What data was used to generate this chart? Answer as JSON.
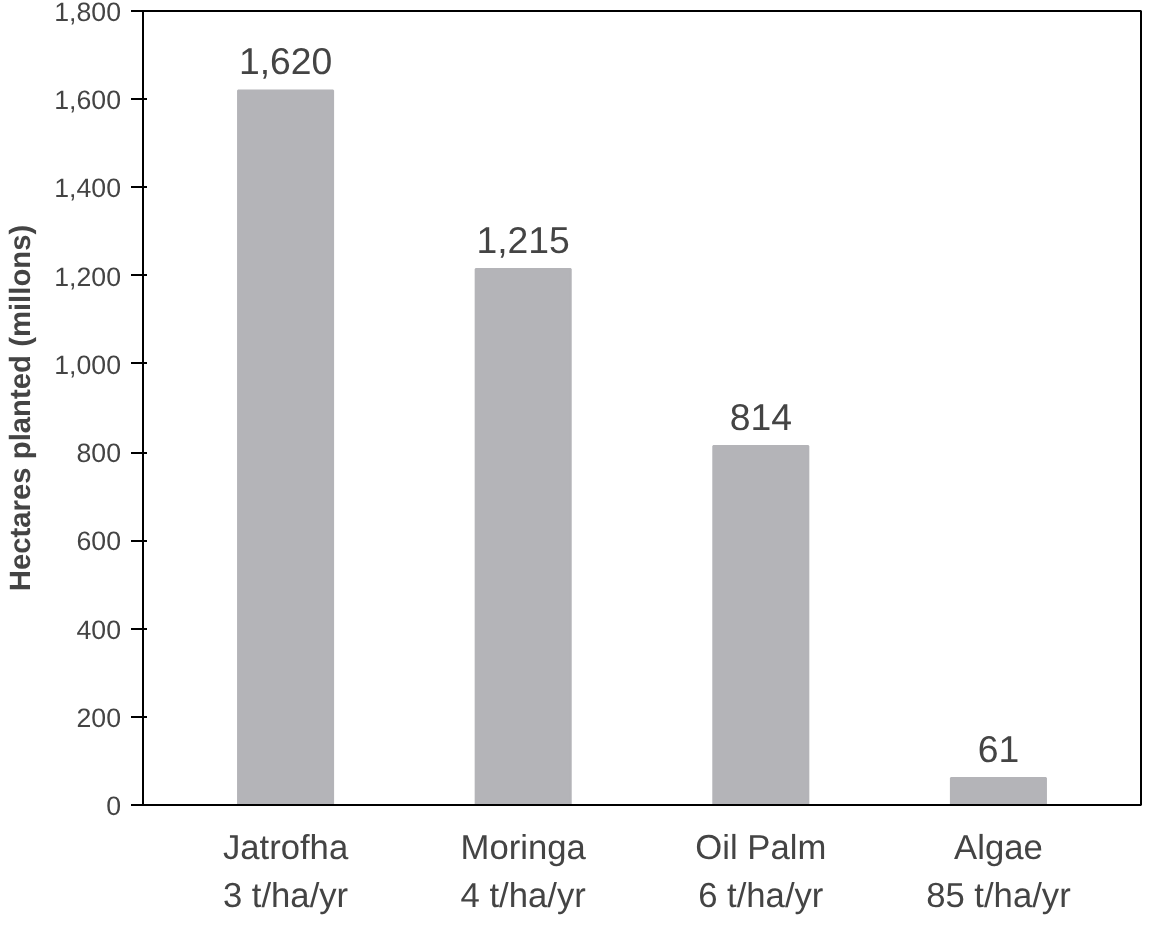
{
  "chart_data": {
    "type": "bar",
    "ylabel": "Hectares planted (millons)",
    "categories": [
      "Jatrofha\n3 t/ha/yr",
      "Moringa\n4 t/ha/yr",
      "Oil Palm\n6 t/ha/yr",
      "Algae\n85 t/ha/yr"
    ],
    "values": [
      1620,
      1215,
      814,
      61
    ],
    "color": "#b4b4b8",
    "value_labels": [
      "1,620",
      "1,215",
      "814",
      "61"
    ],
    "ylim": [
      0,
      1800
    ],
    "yticks": [
      0,
      {
        "value": 200,
        "label": "200"
      },
      {
        "value": 400,
        "label": "400"
      },
      {
        "value": 600,
        "label": "600"
      },
      {
        "value": 800,
        "label": "800"
      },
      {
        "value": 1000,
        "label": "1,000"
      },
      {
        "value": 1200,
        "label": "1,200"
      },
      {
        "value": 1400,
        "label": "1,400"
      },
      {
        "value": 1600,
        "label": "1,600"
      },
      {
        "value": 1800,
        "label": "1,800"
      }
    ],
    "grid": false
  }
}
